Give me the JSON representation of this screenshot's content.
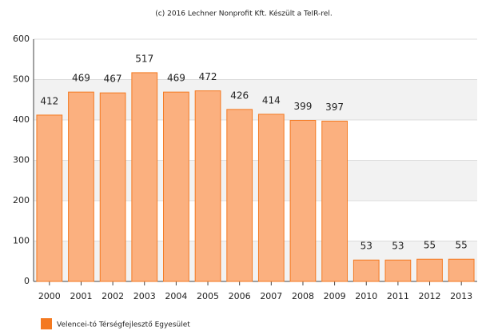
{
  "chart_data": {
    "type": "bar",
    "title": "(c) 2016 Lechner Nonprofit Kft. Készült a TeIR-rel.",
    "categories": [
      "2000",
      "2001",
      "2002",
      "2003",
      "2004",
      "2005",
      "2006",
      "2007",
      "2008",
      "2009",
      "2010",
      "2011",
      "2012",
      "2013"
    ],
    "series": [
      {
        "name": "Velencei-tó Térségfejlesztő Egyesület",
        "color": "#f47920",
        "values": [
          412,
          469,
          467,
          517,
          469,
          472,
          426,
          414,
          399,
          397,
          53,
          53,
          55,
          55
        ]
      }
    ],
    "ylim": [
      0,
      600
    ],
    "yticks": [
      0,
      100,
      200,
      300,
      400,
      500,
      600
    ],
    "grid": true
  }
}
